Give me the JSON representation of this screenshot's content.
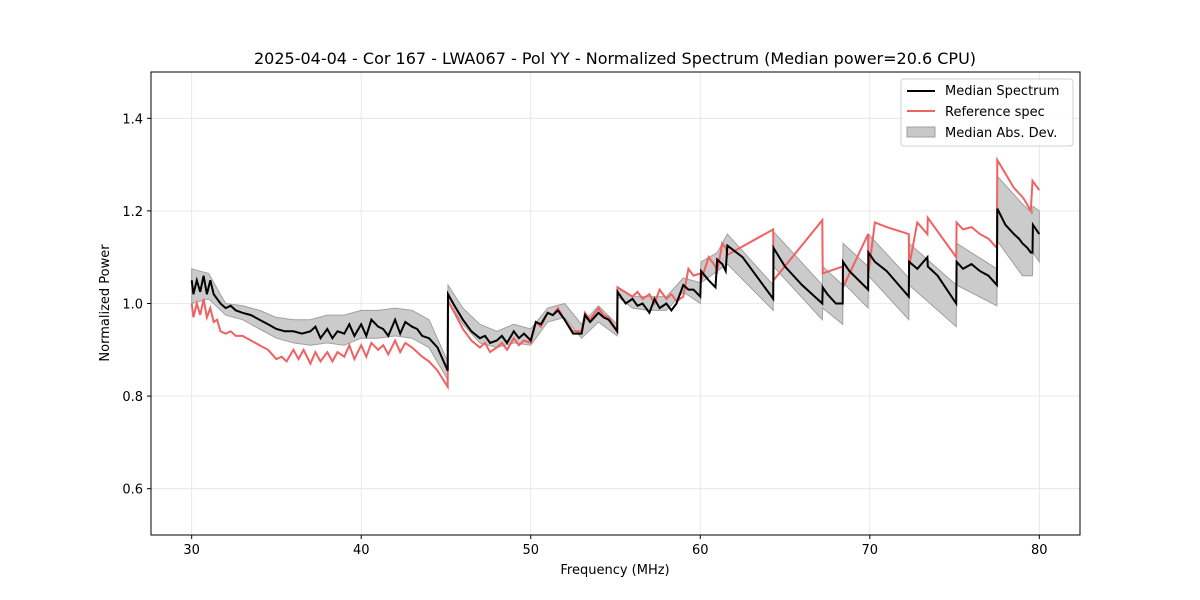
{
  "chart_data": {
    "type": "line",
    "title": "2025-04-04 - Cor 167 - LWA067 - Pol YY - Normalized Spectrum (Median power=20.6 CPU)",
    "xlabel": "Frequency (MHz)",
    "ylabel": "Normalized Power",
    "xlim": [
      27.6,
      82.4
    ],
    "ylim": [
      0.5,
      1.5
    ],
    "xticks": [
      30,
      40,
      50,
      60,
      70,
      80
    ],
    "xtick_labels": [
      "30",
      "40",
      "50",
      "60",
      "70",
      "80"
    ],
    "yticks": [
      0.6,
      0.8,
      1.0,
      1.2,
      1.4
    ],
    "ytick_labels": [
      "0.6",
      "0.8",
      "1.0",
      "1.2",
      "1.4"
    ],
    "grid": true,
    "legend": {
      "placement": "top-right",
      "entries": [
        {
          "label": "Median Spectrum",
          "kind": "line",
          "color": "#000000"
        },
        {
          "label": "Reference spec",
          "kind": "line",
          "color": "#f06262"
        },
        {
          "label": "Median Abs. Dev.",
          "kind": "patch",
          "color": "#c8c8c8"
        }
      ]
    },
    "series": [
      {
        "name": "Median Spectrum",
        "color": "#000000",
        "x": [
          30.0,
          30.1,
          30.3,
          30.5,
          30.7,
          30.9,
          31.1,
          31.3,
          31.5,
          31.7,
          32.0,
          32.3,
          32.6,
          33.0,
          33.5,
          34.0,
          34.5,
          35.0,
          35.5,
          36.0,
          36.5,
          37.0,
          37.3,
          37.6,
          38.0,
          38.3,
          38.6,
          39.0,
          39.3,
          39.6,
          40.0,
          40.3,
          40.6,
          41.0,
          41.3,
          41.6,
          42.0,
          42.3,
          42.6,
          43.0,
          43.3,
          43.6,
          44.0,
          44.5,
          45.1,
          45.12,
          45.5,
          46.0,
          46.5,
          47.0,
          47.3,
          47.6,
          48.0,
          48.3,
          48.6,
          49.0,
          49.3,
          49.6,
          50.0,
          50.3,
          50.6,
          51.0,
          51.3,
          51.6,
          52.0,
          52.5,
          53.0,
          53.2,
          53.5,
          54.0,
          54.3,
          54.6,
          55.1,
          55.12,
          55.6,
          56.0,
          56.3,
          56.6,
          57.0,
          57.3,
          57.6,
          58.0,
          58.3,
          58.6,
          59.0,
          59.3,
          59.6,
          60.0,
          60.05,
          60.5,
          60.9,
          61.0,
          61.3,
          61.5,
          61.6,
          62.5,
          63.5,
          64.3,
          64.32,
          65.0,
          66.0,
          67.2,
          67.22,
          67.5,
          68.0,
          68.4,
          68.42,
          68.8,
          69.9,
          69.92,
          70.3,
          71.0,
          72.3,
          72.32,
          72.8,
          73.4,
          73.42,
          74.0,
          75.1,
          75.12,
          75.5,
          76.0,
          76.5,
          77.0,
          77.5,
          77.52,
          78.0,
          78.5,
          78.8,
          79.0,
          79.3,
          79.5,
          79.6,
          79.62,
          80.0
        ],
        "y": [
          1.05,
          1.02,
          1.05,
          1.025,
          1.06,
          1.02,
          1.05,
          1.02,
          1.01,
          1.0,
          0.99,
          0.995,
          0.985,
          0.98,
          0.975,
          0.965,
          0.955,
          0.945,
          0.94,
          0.94,
          0.935,
          0.94,
          0.95,
          0.925,
          0.945,
          0.925,
          0.94,
          0.935,
          0.955,
          0.93,
          0.955,
          0.93,
          0.965,
          0.95,
          0.945,
          0.93,
          0.965,
          0.935,
          0.96,
          0.95,
          0.945,
          0.93,
          0.925,
          0.905,
          0.855,
          1.02,
          0.995,
          0.965,
          0.94,
          0.925,
          0.93,
          0.915,
          0.92,
          0.93,
          0.915,
          0.94,
          0.925,
          0.935,
          0.92,
          0.96,
          0.955,
          0.98,
          0.975,
          0.985,
          0.965,
          0.935,
          0.935,
          0.975,
          0.96,
          0.98,
          0.97,
          0.965,
          0.94,
          1.025,
          1.0,
          1.01,
          0.995,
          1.0,
          0.98,
          1.01,
          0.99,
          1.0,
          0.985,
          1.0,
          1.04,
          1.03,
          1.03,
          1.015,
          1.07,
          1.05,
          1.035,
          1.095,
          1.085,
          1.07,
          1.125,
          1.1,
          1.05,
          1.01,
          1.12,
          1.08,
          1.04,
          1.0,
          1.035,
          1.02,
          1.0,
          1.0,
          1.09,
          1.07,
          1.03,
          1.11,
          1.09,
          1.07,
          1.015,
          1.09,
          1.075,
          1.1,
          1.08,
          1.06,
          1.0,
          1.09,
          1.075,
          1.085,
          1.07,
          1.06,
          1.04,
          1.205,
          1.17,
          1.15,
          1.14,
          1.13,
          1.12,
          1.11,
          1.11,
          1.17,
          1.15
        ]
      },
      {
        "name": "Reference spec",
        "color": "#f06262",
        "x": [
          30.0,
          30.1,
          30.3,
          30.5,
          30.7,
          30.9,
          31.1,
          31.3,
          31.5,
          31.7,
          32.0,
          32.3,
          32.6,
          33.0,
          33.5,
          34.0,
          34.5,
          35.0,
          35.3,
          35.6,
          36.0,
          36.3,
          36.6,
          37.0,
          37.3,
          37.6,
          38.0,
          38.3,
          38.6,
          39.0,
          39.3,
          39.6,
          40.0,
          40.3,
          40.6,
          41.0,
          41.3,
          41.6,
          42.0,
          42.3,
          42.6,
          43.0,
          43.3,
          43.6,
          44.0,
          44.5,
          45.1,
          45.12,
          45.5,
          46.0,
          46.5,
          47.0,
          47.3,
          47.6,
          48.0,
          48.3,
          48.6,
          49.0,
          49.3,
          49.6,
          50.0,
          50.3,
          50.6,
          51.0,
          51.3,
          51.6,
          52.0,
          52.5,
          53.0,
          53.2,
          53.5,
          54.0,
          54.3,
          54.6,
          55.1,
          55.12,
          56.0,
          56.3,
          56.6,
          57.0,
          57.3,
          57.6,
          58.0,
          58.3,
          58.6,
          59.0,
          59.3,
          59.6,
          60.0,
          60.05,
          60.5,
          60.9,
          61.0,
          61.3,
          61.5,
          61.6,
          64.3,
          64.32,
          67.2,
          67.22,
          68.4,
          68.42,
          69.9,
          69.92,
          70.3,
          71.0,
          72.3,
          72.32,
          72.8,
          73.4,
          73.42,
          75.1,
          75.12,
          75.5,
          76.0,
          76.5,
          77.0,
          77.5,
          77.52,
          78.5,
          79.0,
          79.1,
          79.5,
          79.6,
          80.0
        ],
        "y": [
          1.0,
          0.97,
          1.0,
          0.975,
          1.01,
          0.97,
          0.99,
          0.96,
          0.965,
          0.94,
          0.935,
          0.94,
          0.93,
          0.93,
          0.92,
          0.91,
          0.9,
          0.88,
          0.885,
          0.875,
          0.9,
          0.88,
          0.9,
          0.87,
          0.895,
          0.875,
          0.895,
          0.875,
          0.895,
          0.885,
          0.91,
          0.88,
          0.91,
          0.885,
          0.915,
          0.9,
          0.91,
          0.89,
          0.92,
          0.895,
          0.915,
          0.905,
          0.895,
          0.885,
          0.875,
          0.855,
          0.82,
          1.005,
          0.98,
          0.945,
          0.92,
          0.905,
          0.915,
          0.895,
          0.905,
          0.915,
          0.9,
          0.925,
          0.91,
          0.92,
          0.915,
          0.96,
          0.95,
          0.98,
          0.975,
          0.99,
          0.965,
          0.94,
          0.94,
          0.98,
          0.965,
          0.99,
          0.975,
          0.97,
          0.94,
          1.035,
          1.015,
          1.025,
          1.01,
          1.02,
          1.0,
          1.03,
          1.01,
          1.02,
          1.005,
          1.015,
          1.075,
          1.06,
          1.065,
          1.05,
          1.1,
          1.08,
          1.07,
          1.13,
          1.12,
          1.105,
          1.16,
          1.05,
          1.18,
          1.065,
          1.08,
          1.035,
          1.15,
          1.065,
          1.175,
          1.165,
          1.15,
          1.08,
          1.175,
          1.15,
          1.185,
          1.1,
          1.175,
          1.16,
          1.165,
          1.15,
          1.14,
          1.12,
          1.31,
          1.25,
          1.23,
          1.225,
          1.2,
          1.265,
          1.245
        ]
      }
    ],
    "band": {
      "name": "Median Abs. Dev.",
      "color": "#c8c8c8",
      "x": [
        30.0,
        31.0,
        32.0,
        33.0,
        34.0,
        35.0,
        36.0,
        37.0,
        38.0,
        39.0,
        40.0,
        41.0,
        42.0,
        43.0,
        44.0,
        45.1,
        45.12,
        46.0,
        47.0,
        48.0,
        49.0,
        50.0,
        51.0,
        52.0,
        53.0,
        54.0,
        55.1,
        55.12,
        56.0,
        57.0,
        58.0,
        59.0,
        60.0,
        60.05,
        61.0,
        61.6,
        64.3,
        64.32,
        67.2,
        67.22,
        68.4,
        68.42,
        69.9,
        69.92,
        72.3,
        72.32,
        75.1,
        75.12,
        77.5,
        77.52,
        79.0,
        79.6,
        79.62,
        80.0
      ],
      "lower": [
        1.0,
        1.01,
        0.975,
        0.965,
        0.945,
        0.925,
        0.915,
        0.91,
        0.915,
        0.91,
        0.925,
        0.925,
        0.93,
        0.925,
        0.905,
        0.835,
        1.005,
        0.955,
        0.915,
        0.905,
        0.915,
        0.91,
        0.96,
        0.97,
        0.925,
        0.96,
        0.93,
        1.015,
        0.99,
        0.985,
        0.985,
        1.025,
        1.0,
        1.045,
        1.07,
        1.085,
        0.985,
        1.08,
        0.965,
        0.99,
        0.955,
        1.045,
        0.99,
        1.06,
        0.965,
        1.04,
        0.95,
        1.04,
        0.995,
        1.135,
        1.06,
        1.06,
        1.11,
        1.09
      ],
      "upper": [
        1.075,
        1.065,
        1.0,
        0.995,
        0.985,
        0.97,
        0.965,
        0.965,
        0.975,
        0.975,
        0.985,
        0.985,
        0.99,
        0.985,
        0.965,
        0.875,
        1.04,
        0.99,
        0.955,
        0.94,
        0.955,
        0.945,
        0.99,
        1.0,
        0.955,
        0.995,
        0.955,
        1.035,
        1.015,
        1.015,
        1.015,
        1.055,
        1.045,
        1.09,
        1.11,
        1.15,
        1.04,
        1.155,
        1.04,
        1.08,
        1.04,
        1.13,
        1.08,
        1.15,
        1.055,
        1.13,
        1.04,
        1.13,
        1.075,
        1.275,
        1.215,
        1.195,
        1.21,
        1.2
      ]
    }
  }
}
